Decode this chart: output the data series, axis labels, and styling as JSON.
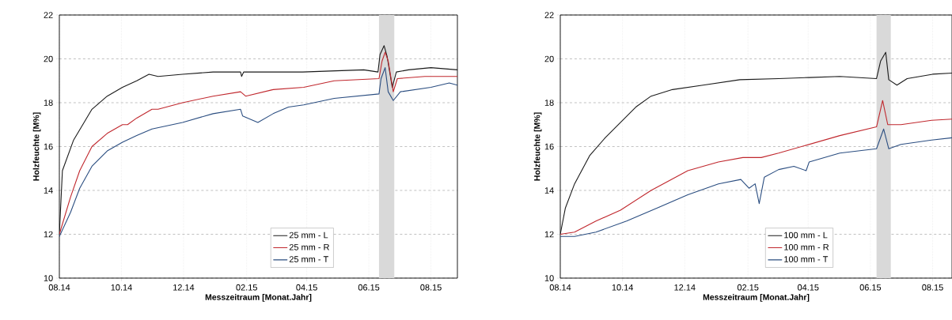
{
  "chart_data": [
    {
      "type": "line",
      "xlabel": "Messzeitraum [Monat.Jahr]",
      "ylabel": "Holzfeuchte [M%]",
      "xlim": [
        "2014-08-01",
        "2015-08-27"
      ],
      "ylim": [
        10,
        22
      ],
      "yticks": [
        10,
        12,
        14,
        16,
        18,
        20,
        22
      ],
      "xticks": [
        {
          "value": "2014-08-01",
          "label": "08.14"
        },
        {
          "value": "2014-10-01",
          "label": "10.14"
        },
        {
          "value": "2014-12-01",
          "label": "12.14"
        },
        {
          "value": "2015-02-01",
          "label": "02.15"
        },
        {
          "value": "2015-04-01",
          "label": "04.15"
        },
        {
          "value": "2015-06-01",
          "label": "06.15"
        },
        {
          "value": "2015-08-01",
          "label": "08.15"
        }
      ],
      "grid": true,
      "legend": "bottom",
      "line_style": "solid",
      "marker": "none",
      "bands": [
        {
          "axis": "x",
          "from": "2015-06-11",
          "to": "2015-06-26",
          "color": "#d9d9d9"
        }
      ],
      "series": [
        {
          "name": "25 mm - L",
          "color": "#1a1a1a",
          "x": [
            "2014-08-01",
            "2014-08-04",
            "2014-08-15",
            "2014-09-02",
            "2014-09-17",
            "2014-10-02",
            "2014-10-16",
            "2014-10-28",
            "2014-11-06",
            "2014-11-30",
            "2014-12-30",
            "2015-01-26",
            "2015-01-27",
            "2015-01-29",
            "2015-03-28",
            "2015-05-27",
            "2015-06-10",
            "2015-06-12",
            "2015-06-16",
            "2015-06-19",
            "2015-06-24",
            "2015-06-28",
            "2015-07-10",
            "2015-08-01",
            "2015-08-27"
          ],
          "values": [
            12.0,
            14.9,
            16.3,
            17.7,
            18.3,
            18.7,
            19.0,
            19.3,
            19.2,
            19.3,
            19.4,
            19.4,
            19.2,
            19.4,
            19.4,
            19.5,
            19.4,
            20.2,
            20.6,
            20.1,
            18.7,
            19.4,
            19.5,
            19.6,
            19.5
          ]
        },
        {
          "name": "25 mm - R",
          "color": "#c0272d",
          "x": [
            "2014-08-01",
            "2014-08-12",
            "2014-08-21",
            "2014-09-02",
            "2014-09-17",
            "2014-10-02",
            "2014-10-07",
            "2014-10-16",
            "2014-10-31",
            "2014-11-06",
            "2014-11-30",
            "2014-12-30",
            "2015-01-26",
            "2015-01-31",
            "2015-02-27",
            "2015-03-29",
            "2015-04-28",
            "2015-06-11",
            "2015-06-14",
            "2015-06-17",
            "2015-06-20",
            "2015-06-25",
            "2015-06-29",
            "2015-07-26",
            "2015-08-27"
          ],
          "values": [
            12.0,
            13.7,
            14.9,
            16.0,
            16.6,
            17.0,
            17.0,
            17.3,
            17.7,
            17.7,
            18.0,
            18.3,
            18.5,
            18.3,
            18.6,
            18.7,
            19.0,
            19.1,
            19.9,
            20.3,
            19.9,
            18.5,
            19.1,
            19.2,
            19.2
          ]
        },
        {
          "name": "25 mm - T",
          "color": "#2a4d80",
          "x": [
            "2014-08-01",
            "2014-08-12",
            "2014-08-21",
            "2014-09-02",
            "2014-09-17",
            "2014-10-02",
            "2014-10-16",
            "2014-10-31",
            "2014-11-30",
            "2014-12-30",
            "2015-01-26",
            "2015-01-28",
            "2015-02-12",
            "2015-02-27",
            "2015-03-14",
            "2015-03-29",
            "2015-04-28",
            "2015-06-11",
            "2015-06-13",
            "2015-06-17",
            "2015-06-20",
            "2015-06-25",
            "2015-07-02",
            "2015-08-01",
            "2015-08-19",
            "2015-08-27"
          ],
          "values": [
            11.9,
            13.0,
            14.1,
            15.1,
            15.8,
            16.2,
            16.5,
            16.8,
            17.1,
            17.5,
            17.7,
            17.4,
            17.1,
            17.5,
            17.8,
            17.9,
            18.2,
            18.4,
            19.1,
            19.6,
            18.5,
            18.1,
            18.5,
            18.7,
            18.9,
            18.8
          ]
        }
      ]
    },
    {
      "type": "line",
      "xlabel": "Messzeitraum [Monat.Jahr]",
      "ylabel": "Holzfeuchte [M%]",
      "xlim": [
        "2014-08-01",
        "2015-08-20"
      ],
      "ylim": [
        10,
        22
      ],
      "yticks": [
        10,
        12,
        14,
        16,
        18,
        20,
        22
      ],
      "xticks": [
        {
          "value": "2014-08-01",
          "label": "08.14"
        },
        {
          "value": "2014-10-01",
          "label": "10.14"
        },
        {
          "value": "2014-12-01",
          "label": "12.14"
        },
        {
          "value": "2015-02-01",
          "label": "02.15"
        },
        {
          "value": "2015-04-01",
          "label": "04.15"
        },
        {
          "value": "2015-06-01",
          "label": "06.15"
        },
        {
          "value": "2015-08-01",
          "label": "08.15"
        }
      ],
      "grid": true,
      "legend": "bottom",
      "line_style": "solid",
      "marker": "none",
      "bands": [
        {
          "axis": "x",
          "from": "2015-06-07",
          "to": "2015-06-21",
          "color": "#d9d9d9"
        }
      ],
      "series": [
        {
          "name": "100 mm - L",
          "color": "#1a1a1a",
          "x": [
            "2014-08-01",
            "2014-08-06",
            "2014-08-15",
            "2014-08-30",
            "2014-09-14",
            "2014-09-29",
            "2014-10-14",
            "2014-10-29",
            "2014-11-19",
            "2014-12-19",
            "2015-01-24",
            "2015-03-03",
            "2015-04-02",
            "2015-05-02",
            "2015-06-07",
            "2015-06-11",
            "2015-06-16",
            "2015-06-19",
            "2015-06-27",
            "2015-07-07",
            "2015-08-01",
            "2015-08-20"
          ],
          "values": [
            12.0,
            13.2,
            14.3,
            15.6,
            16.4,
            17.1,
            17.8,
            18.3,
            18.6,
            18.8,
            19.05,
            19.1,
            19.15,
            19.2,
            19.1,
            19.9,
            20.3,
            19.05,
            18.8,
            19.1,
            19.3,
            19.35
          ]
        },
        {
          "name": "100 mm - R",
          "color": "#c0272d",
          "x": [
            "2014-08-01",
            "2014-08-15",
            "2014-09-05",
            "2014-09-29",
            "2014-10-29",
            "2014-12-04",
            "2015-01-03",
            "2015-01-27",
            "2015-02-14",
            "2015-03-03",
            "2015-04-02",
            "2015-05-02",
            "2015-06-07",
            "2015-06-13",
            "2015-06-18",
            "2015-07-01",
            "2015-07-31",
            "2015-08-20"
          ],
          "values": [
            12.0,
            12.1,
            12.6,
            13.1,
            14.0,
            14.9,
            15.3,
            15.5,
            15.5,
            15.7,
            16.1,
            16.5,
            16.9,
            18.1,
            17.0,
            17.0,
            17.2,
            17.25
          ]
        },
        {
          "name": "100 mm - T",
          "color": "#2a4d80",
          "x": [
            "2014-08-01",
            "2014-08-15",
            "2014-09-05",
            "2014-10-05",
            "2014-11-04",
            "2014-12-04",
            "2015-01-03",
            "2015-01-25",
            "2015-02-02",
            "2015-02-08",
            "2015-02-12",
            "2015-02-17",
            "2015-03-03",
            "2015-03-18",
            "2015-03-30",
            "2015-04-02",
            "2015-05-02",
            "2015-06-07",
            "2015-06-14",
            "2015-06-19",
            "2015-07-01",
            "2015-07-31",
            "2015-08-20"
          ],
          "values": [
            11.9,
            11.9,
            12.1,
            12.6,
            13.2,
            13.8,
            14.3,
            14.5,
            14.1,
            14.3,
            13.4,
            14.6,
            14.95,
            15.1,
            14.9,
            15.3,
            15.7,
            15.9,
            16.8,
            15.9,
            16.1,
            16.3,
            16.4
          ]
        }
      ]
    }
  ]
}
